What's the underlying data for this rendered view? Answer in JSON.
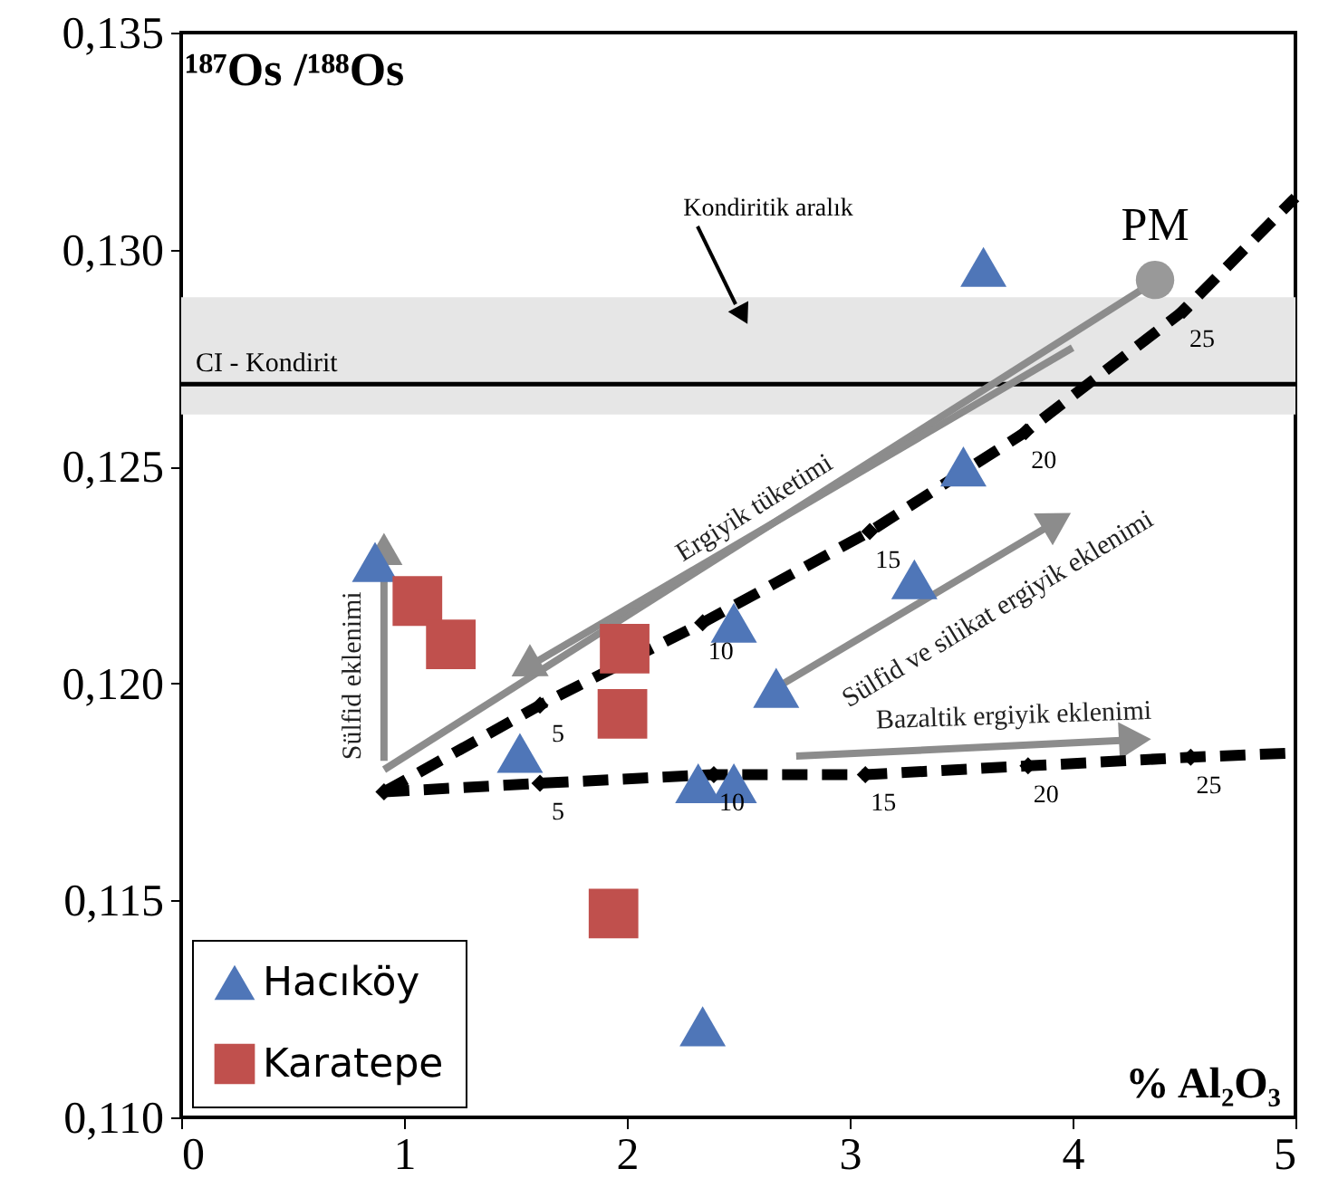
{
  "chart_data": {
    "type": "scatter",
    "xlabel": "% Al₂O₃",
    "ylabel": "¹⁸⁷Os /¹⁸⁸Os",
    "xlim": [
      0,
      5
    ],
    "xticks": [
      0,
      1,
      2,
      3,
      4,
      5
    ],
    "ylim": [
      0.11,
      0.135
    ],
    "yticks": [
      {
        "value": 0.11,
        "label": "0,110"
      },
      {
        "value": 0.115,
        "label": "0,115"
      },
      {
        "value": 0.12,
        "label": "0,120"
      },
      {
        "value": 0.125,
        "label": "0,125"
      },
      {
        "value": 0.13,
        "label": "0,130"
      },
      {
        "value": 0.135,
        "label": "0,135"
      }
    ],
    "grid": false,
    "legend": "bottom left",
    "bands": [
      {
        "axis": "y",
        "from": 0.1262,
        "to": 0.1289,
        "color": "#e6e6e6",
        "label": "Kondiritik aralık"
      }
    ],
    "ref_lines": [
      {
        "axis": "y",
        "value": 0.1269,
        "label": "CI - Kondirit",
        "color": "#000000"
      }
    ],
    "series": [
      {
        "type": "line",
        "x": [
          0.91,
          1.61,
          2.34,
          3.09,
          3.79,
          4.5,
          5.0
        ],
        "values": [
          0.1175,
          0.1195,
          0.1214,
          0.1235,
          0.1258,
          0.1286,
          0.1312
        ],
        "color": "#000000",
        "line_style": "dashed"
      },
      {
        "type": "line",
        "x": [
          0.91,
          1.61,
          2.39,
          3.07,
          3.8,
          4.53,
          5.0
        ],
        "values": [
          0.1175,
          0.1177,
          0.1179,
          0.1179,
          0.1181,
          0.1183,
          0.1184
        ],
        "color": "#000000",
        "line_style": "dashed"
      },
      {
        "marker": "diamond",
        "color": "#000000",
        "x": [
          0.91,
          1.61,
          2.34,
          3.09,
          3.79,
          4.5,
          1.61,
          2.39,
          3.07,
          3.8,
          4.53
        ],
        "values": [
          0.1175,
          0.1195,
          0.1214,
          0.1235,
          0.1258,
          0.1286,
          0.1177,
          0.1179,
          0.1179,
          0.1181,
          0.1183
        ]
      },
      {
        "marker": "circle",
        "color": "#999999",
        "x": [
          4.37
        ],
        "values": [
          0.1293
        ]
      },
      {
        "name": "Hacıköy",
        "marker": "triangle",
        "color": "#4f76b8",
        "x": [
          0.87,
          3.6,
          3.51,
          3.29,
          2.48,
          2.67,
          1.52,
          2.32,
          2.48,
          2.34
        ],
        "values": [
          0.1228,
          0.1296,
          0.125,
          0.1224,
          0.1214,
          0.1199,
          0.1184,
          0.1177,
          0.1177,
          0.1121
        ]
      },
      {
        "name": "Karatepe",
        "marker": "square",
        "color": "#c0504d",
        "x": [
          1.06,
          1.21,
          1.99,
          1.98,
          1.94
        ],
        "values": [
          0.1219,
          0.1209,
          0.1208,
          0.1193,
          0.1147
        ]
      }
    ],
    "annotations": [
      "Ergiyik tüketimi",
      {
        "text": "Sülfid eklenimi",
        "x": 0.91,
        "y": 0.1231
      },
      {
        "text": "Sülfid ve silikat ergiyik eklenimi",
        "x": 2.67,
        "y": 0.1199
      },
      {
        "text": "Bazaltik ergiyik eklenimi",
        "x": 4.28,
        "y": 0.1187
      },
      {
        "text": "PM",
        "x": 4.37,
        "y": 0.1293
      },
      {
        "text": "5",
        "x": 1.61,
        "y": 0.1195
      },
      {
        "text": "10",
        "x": 2.34,
        "y": 0.1214
      },
      {
        "text": "15",
        "x": 3.09,
        "y": 0.1235
      },
      {
        "text": "20",
        "x": 3.79,
        "y": 0.1258
      },
      {
        "text": "25",
        "x": 4.5,
        "y": 0.1286
      },
      {
        "text": "5",
        "x": 1.61,
        "y": 0.1177
      },
      {
        "text": "10",
        "x": 2.39,
        "y": 0.1179
      },
      {
        "text": "15",
        "x": 3.07,
        "y": 0.1179
      },
      {
        "text": "20",
        "x": 3.8,
        "y": 0.1181
      },
      {
        "text": "25",
        "x": 4.53,
        "y": 0.1183
      }
    ]
  }
}
